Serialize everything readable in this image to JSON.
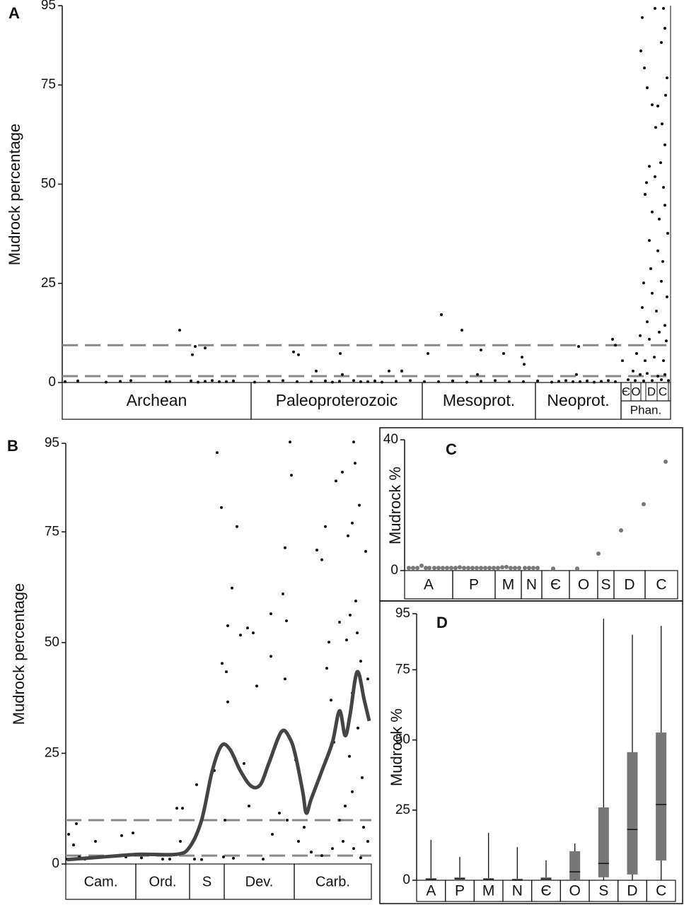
{
  "chart_data": [
    {
      "type": "scatter",
      "title": "A",
      "ylabel": "Mudrock percentage",
      "color": "#111111",
      "xlim": [
        0,
        860
      ],
      "ylim": [
        0,
        95
      ],
      "yticks": [
        0,
        25,
        50,
        75,
        95
      ],
      "hlines": [
        9.4,
        1.6
      ],
      "hline_color": "#888888",
      "bands": [
        {
          "name": "Archean",
          "range": [
            0,
            267
          ]
        },
        {
          "name": "Paleoproterozoic",
          "range": [
            267,
            509
          ]
        },
        {
          "name": "Mesoprot.",
          "range": [
            509,
            669
          ]
        },
        {
          "name": "Neoprot.",
          "range": [
            669,
            790
          ]
        },
        {
          "name": "Phan.",
          "range": [
            790,
            860
          ],
          "sub": [
            {
              "name": "Є",
              "range": [
                790,
                804
              ]
            },
            {
              "name": "O",
              "range": [
                804,
                818
              ]
            },
            {
              "name": "D",
              "range": [
                825,
                841
              ]
            },
            {
              "name": "C",
              "range": [
                841,
                857
              ]
            }
          ]
        }
      ],
      "x": [
        4,
        22,
        62,
        82,
        97,
        147,
        152,
        182,
        192,
        202,
        212,
        222,
        232,
        242,
        272,
        292,
        312,
        332,
        352,
        372,
        382,
        392,
        412,
        422,
        432,
        442,
        452,
        472,
        492,
        512,
        532,
        552,
        572,
        592,
        612,
        632,
        652,
        672,
        692,
        702,
        712,
        722,
        732,
        742,
        752,
        762,
        772,
        782,
        166,
        184,
        188,
        202,
        327,
        334,
        359,
        393,
        396,
        462,
        480,
        517,
        536,
        565,
        592,
        587,
        624,
        650,
        653,
        730,
        727,
        778,
        782,
        792,
        820,
        818,
        823,
        827,
        838,
        850,
        852,
        847,
        834,
        842,
        853,
        830,
        826,
        838,
        846,
        852,
        850,
        834,
        844,
        852,
        830,
        842,
        849,
        822,
        834,
        847,
        855,
        820,
        827,
        840,
        852,
        817,
        830,
        844,
        854,
        812,
        824,
        837,
        850,
        807,
        817,
        827,
        842,
        852,
        800,
        810,
        822,
        834,
        847,
        857,
        839,
        855,
        832,
        856,
        824,
        848
      ],
      "values": [
        0.2,
        0.4,
        0.1,
        0.3,
        0.5,
        0.2,
        0.2,
        0.4,
        0.1,
        0.3,
        0.5,
        0.2,
        0.2,
        0.4,
        0.1,
        0.3,
        0.5,
        0.2,
        0.2,
        0.4,
        0.1,
        0.3,
        0.5,
        0.2,
        0.2,
        0.4,
        0.1,
        0.3,
        0.5,
        0.2,
        0.2,
        0.4,
        0.1,
        0.3,
        0.5,
        0.2,
        0.2,
        0.4,
        0.1,
        0.3,
        0.5,
        0.2,
        0.2,
        0.4,
        0.1,
        0.3,
        0.5,
        0.2,
        13.2,
        7,
        9.1,
        8.7,
        7.7,
        7,
        2.9,
        7.3,
        2,
        2.9,
        2.9,
        7.3,
        17.1,
        13.2,
        8.2,
        2,
        7.3,
        6.4,
        4.6,
        9.1,
        2,
        10.9,
        9.4,
        5.5,
        92,
        83.6,
        79.3,
        74.3,
        94.3,
        94.3,
        89.3,
        85.7,
        70,
        69.7,
        72.4,
        54.5,
        50.4,
        51.9,
        55.4,
        59.9,
        49.2,
        43,
        41.2,
        44.7,
        35.8,
        33.2,
        30.5,
        25.1,
        22.5,
        25.5,
        21.6,
        18.9,
        15.3,
        18,
        14.4,
        11.8,
        10.9,
        12.7,
        10.5,
        7.3,
        5.5,
        6.4,
        5.5,
        2.9,
        2,
        2.3,
        1.6,
        2,
        0.7,
        0.5,
        0.4,
        0.5,
        0.7,
        0.5,
        64.3,
        76.8,
        28.7,
        37.6,
        47.4,
        65.2
      ]
    },
    {
      "type": "scatter",
      "title": "B",
      "ylabel": "Mudrock percentage",
      "color": "#111111",
      "xlim": [
        0,
        432
      ],
      "ylim": [
        0,
        95
      ],
      "yticks": [
        0,
        25,
        50,
        75,
        95
      ],
      "hlines": [
        9.9,
        1.9
      ],
      "hline_color": "#888888",
      "bands": [
        {
          "name": "Cam.",
          "range": [
            0,
            99
          ]
        },
        {
          "name": "Ord.",
          "range": [
            99,
            175
          ]
        },
        {
          "name": "S",
          "range": [
            175,
            224
          ]
        },
        {
          "name": "Dev.",
          "range": [
            224,
            323
          ]
        },
        {
          "name": "Carb.",
          "range": [
            323,
            432
          ]
        }
      ],
      "x": [
        2,
        4,
        11,
        15,
        19,
        27,
        42,
        57,
        79,
        85,
        95,
        107,
        137,
        157,
        165,
        162,
        182,
        185,
        192,
        210,
        214,
        220,
        221,
        227,
        229,
        229,
        235,
        225,
        223,
        242,
        247,
        257,
        265,
        270,
        252,
        259,
        290,
        290,
        292,
        302,
        307,
        310,
        312,
        310,
        313,
        317,
        319,
        325,
        329,
        355,
        362,
        367,
        369,
        372,
        375,
        379,
        382,
        387,
        391,
        397,
        399,
        402,
        405,
        407,
        409,
        410,
        412,
        415,
        417,
        419,
        421,
        424,
        427,
        405,
        392,
        377,
        362,
        347,
        337,
        407,
        417,
        427,
        395,
        401,
        413,
        405,
        387,
        279,
        237,
        147
      ],
      "values": [
        1.1,
        6.7,
        4.3,
        9.1,
        1.6,
        1.1,
        5.1,
        1.6,
        6.4,
        1.6,
        7,
        1.4,
        1.1,
        12.6,
        12.6,
        5.1,
        1.1,
        17.9,
        1,
        21.1,
        92.9,
        80.5,
        45.3,
        43.4,
        53.8,
        36.6,
        62.3,
        9.9,
        1.6,
        76.2,
        51.7,
        53.3,
        52.2,
        40.2,
        22.7,
        13.1,
        46.9,
        56.5,
        6.7,
        11.5,
        61,
        71.4,
        54.9,
        41.8,
        9.9,
        95.3,
        87.8,
        23.5,
        5.1,
        70.9,
        68.7,
        76.2,
        44.2,
        50.1,
        37,
        27.5,
        86.5,
        9.9,
        88.5,
        50.6,
        74.1,
        56.2,
        77,
        95.3,
        90.5,
        59.4,
        52.2,
        81,
        45.8,
        19.5,
        8.3,
        70.6,
        41.8,
        16.3,
        5.1,
        3.5,
        1.9,
        2.7,
        8.3,
        3.5,
        1.4,
        5.1,
        13.1,
        24.3,
        30.7,
        38.6,
        54.6,
        1.1,
        1.3,
        1.1
      ],
      "line": {
        "color": "#444444",
        "x": [
          2,
          37,
          77,
          107,
          157,
          175,
          192,
          207,
          220,
          232,
          247,
          262,
          275,
          287,
          305,
          317,
          325,
          335,
          340,
          347,
          362,
          377,
          387,
          395,
          402,
          412,
          422,
          429
        ],
        "values": [
          1,
          1.4,
          1.9,
          2.2,
          2.2,
          3.8,
          9.9,
          21,
          26.7,
          25.9,
          21,
          17.6,
          17.9,
          22.7,
          29.9,
          28.3,
          24.3,
          16.3,
          11.5,
          14.7,
          21,
          27.5,
          34.6,
          29,
          33.8,
          43.4,
          37,
          32.3
        ]
      }
    },
    {
      "type": "scatter",
      "title": "C",
      "ylabel": "Mudrock %",
      "color": "#777777",
      "xlim": [
        0,
        386
      ],
      "ylim": [
        0,
        40
      ],
      "yticks": [
        0,
        40
      ],
      "bands": [
        {
          "name": "A",
          "range": [
            0,
            68
          ]
        },
        {
          "name": "P",
          "range": [
            68,
            128
          ]
        },
        {
          "name": "M",
          "range": [
            128,
            165
          ]
        },
        {
          "name": "N",
          "range": [
            165,
            194
          ]
        },
        {
          "name": "Є",
          "range": [
            194,
            233
          ]
        },
        {
          "name": "O",
          "range": [
            233,
            273
          ]
        },
        {
          "name": "S",
          "range": [
            273,
            296
          ]
        },
        {
          "name": "D",
          "range": [
            296,
            340
          ]
        },
        {
          "name": "C",
          "range": [
            340,
            386
          ]
        }
      ],
      "x": [
        6,
        12,
        18,
        24,
        30,
        35,
        42,
        48,
        54,
        60,
        66,
        72,
        78,
        84,
        90,
        96,
        102,
        108,
        114,
        120,
        126,
        132,
        138,
        144,
        150,
        156,
        162,
        170,
        176,
        182,
        188,
        210,
        244,
        274,
        306,
        338,
        369
      ],
      "values": [
        0.8,
        0.8,
        0.8,
        1.5,
        0.8,
        0.8,
        0.8,
        0.8,
        0.8,
        0.8,
        0.8,
        0.8,
        1,
        0.8,
        0.8,
        0.8,
        0.8,
        0.8,
        0.8,
        0.8,
        0.8,
        0.8,
        1,
        1.1,
        0.8,
        0.8,
        0.8,
        0.8,
        0.8,
        0.8,
        0.8,
        0.6,
        0.6,
        5.2,
        12.3,
        20.3,
        33.3
      ]
    },
    {
      "type": "box",
      "title": "D",
      "ylabel": "Mudrock %",
      "color": "#777777",
      "ylim": [
        0,
        95
      ],
      "yticks": [
        0,
        25,
        50,
        75,
        95
      ],
      "categories": [
        "A",
        "P",
        "M",
        "N",
        "Є",
        "O",
        "S",
        "D",
        "C"
      ],
      "whisker_low": [
        0,
        0,
        0,
        0,
        0,
        0,
        0,
        0,
        0
      ],
      "q1": [
        0,
        0,
        0,
        0,
        0,
        0.5,
        1.3,
        2.3,
        7.3
      ],
      "median": [
        0.3,
        0.5,
        0.3,
        0.1,
        0.4,
        3,
        6,
        18.1,
        27
      ],
      "q3": [
        0.5,
        0.8,
        0.5,
        0.3,
        0.8,
        10.1,
        25.7,
        45.4,
        52.4
      ],
      "whisker_high": [
        14.4,
        8.3,
        16.9,
        11.8,
        7.1,
        13.1,
        93.2,
        87.5,
        90.7
      ]
    }
  ]
}
